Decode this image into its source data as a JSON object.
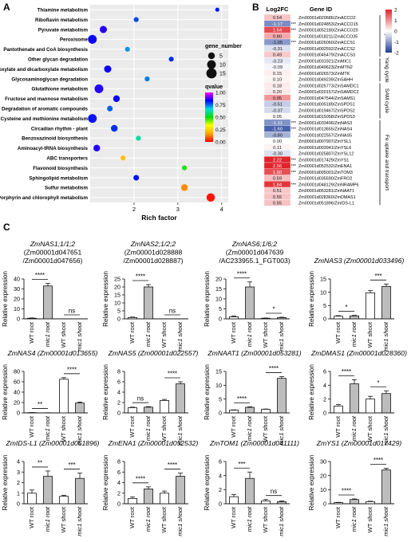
{
  "panel_labels": {
    "a": "A",
    "b": "B",
    "c": "C"
  },
  "chart_data": [
    {
      "panel": "A",
      "type": "scatter",
      "xlabel": "Rich factor",
      "xticks": [
        2,
        3,
        4
      ],
      "xlim": [
        1.0,
        4.15
      ],
      "grid": true,
      "size_legend_title": "gene_number",
      "size_legend": [
        5,
        10,
        15
      ],
      "color_legend_title": "qvalue",
      "color_ticks": [
        "1.00",
        "0.75",
        "0.50",
        "0.25",
        "0.00"
      ],
      "categories": [
        "Thiamine metabolism",
        "Riboflavin metabolism",
        "Pyruvate metabolism",
        "Peroxisome",
        "Pantothenate and CoA biosynthesis",
        "Other glycan degradation",
        "Glyoxylate and dicarboxylate metabolism",
        "Glycosaminoglycan degradation",
        "Glutathione metabolism",
        "Fructose and mannose metabolism",
        "Degradation of aromatic compounds",
        "Cysteine and methionine metabolism",
        "Circadian rhythm - plant",
        "Benzoxazinoid biosynthesis",
        "Aminoacyl-tRNA biosynthesis",
        "ABC transporters",
        "Flavonoid biosynthesis",
        "Sphingolipid metabolism",
        "Sulfur metabolism",
        "Porphyrin and chlorophyll metabolism"
      ],
      "points": [
        {
          "x": 3.9,
          "size": 1,
          "q": 0.82
        },
        {
          "x": 2.05,
          "size": 2,
          "q": 0.78
        },
        {
          "x": 1.3,
          "size": 6,
          "q": 0.86
        },
        {
          "x": 1.05,
          "size": 10,
          "q": 0.84
        },
        {
          "x": 1.85,
          "size": 2,
          "q": 0.72
        },
        {
          "x": 2.85,
          "size": 2,
          "q": 0.8
        },
        {
          "x": 1.4,
          "size": 6,
          "q": 0.84
        },
        {
          "x": 2.3,
          "size": 2,
          "q": 0.74
        },
        {
          "x": 1.2,
          "size": 10,
          "q": 0.86
        },
        {
          "x": 1.6,
          "size": 5,
          "q": 0.84
        },
        {
          "x": 1.45,
          "size": 3,
          "q": 0.76
        },
        {
          "x": 1.05,
          "size": 10,
          "q": 0.82
        },
        {
          "x": 1.55,
          "size": 5,
          "q": 0.8
        },
        {
          "x": 2.1,
          "size": 2,
          "q": 0.62
        },
        {
          "x": 1.15,
          "size": 5,
          "q": 0.86
        },
        {
          "x": 1.75,
          "size": 2,
          "q": 0.22
        },
        {
          "x": 3.15,
          "size": 2,
          "q": 0.48
        },
        {
          "x": 2.05,
          "size": 3,
          "q": 0.82
        },
        {
          "x": 3.15,
          "size": 5,
          "q": 0.14
        },
        {
          "x": 3.75,
          "size": 9,
          "q": 0.02
        }
      ]
    },
    {
      "panel": "B",
      "type": "heatmap",
      "col_headers": [
        "Log2FC",
        "Gene ID"
      ],
      "colorbar_ticks": [
        "2",
        "1",
        "0",
        "-1",
        "-2"
      ],
      "vmin": -2,
      "vmax": 2,
      "rows": [
        {
          "fc": "0.54",
          "v": 0.54,
          "stars": "",
          "gene": "Zm00001d020686/ZmACCO2"
        },
        {
          "fc": "-1.17",
          "v": -1.17,
          "stars": "***",
          "gene": "Zm00001d024853/ZmACCO15"
        },
        {
          "fc": "1.64",
          "v": 1.64,
          "stars": "***",
          "gene": "Zm00001d052180/ZmACCO20"
        },
        {
          "fc": "0.80",
          "v": 0.8,
          "stars": "",
          "gene": "Zm00001d018211/ZmACCO35"
        },
        {
          "fc": "-1.05",
          "v": -1.05,
          "stars": "***",
          "gene": "Zm00001d026060/ZmACCS1"
        },
        {
          "fc": "-0.31",
          "v": -0.31,
          "stars": "",
          "gene": "Zm00001d002592/ZmACCS2"
        },
        {
          "fc": "0.49",
          "v": 0.49,
          "stars": "",
          "gene": "Zm00001d045479/ZmACCS3"
        },
        {
          "fc": "-0.23",
          "v": -0.23,
          "stars": "",
          "gene": "Zm00001d031921/ZmMIC1"
        },
        {
          "fc": "-0.09",
          "v": -0.09,
          "stars": "",
          "gene": "Zm00001d049623/ZmMTN2"
        },
        {
          "fc": "0.15",
          "v": 0.15,
          "stars": "",
          "gene": "Zm00001d026573/ZmMTK"
        },
        {
          "fc": "0.10",
          "v": 0.1,
          "stars": "",
          "gene": "Zm00001d049239/ZmSAHH"
        },
        {
          "fc": "0.18",
          "v": 0.18,
          "stars": "",
          "gene": "Zm00001d025773/ZmSAMDC1"
        },
        {
          "fc": "0.20",
          "v": 0.2,
          "stars": "",
          "gene": "Zm00001d020157/ZmSAMDC2"
        },
        {
          "fc": "0.95",
          "v": 0.95,
          "stars": "",
          "gene": "Zm00001d047544/ZmSAMS1"
        },
        {
          "fc": "-0.51",
          "v": -0.51,
          "stars": "",
          "gene": "Zm00001d005189/ZmSPDS1"
        },
        {
          "fc": "-0.37",
          "v": -0.37,
          "stars": "",
          "gene": "Zm00001d019467/ZmSPDS2"
        },
        {
          "fc": "0.05",
          "v": 0.05,
          "stars": "",
          "gene": "Zm00001d015058/ZmSPDS3"
        },
        {
          "fc": "-1.11",
          "v": -1.11,
          "stars": "***",
          "gene": "Zm00001d033496/ZmNAS3"
        },
        {
          "fc": "-1.60",
          "v": -1.6,
          "stars": "***",
          "gene": "Zm00001d013655/ZmNAS4"
        },
        {
          "fc": "-0.80",
          "v": -0.8,
          "stars": "",
          "gene": "Zm00001d022557/ZmNAS5"
        },
        {
          "fc": "0.00",
          "v": 0.0,
          "stars": "",
          "gene": "Zm00001d007907/ZmYSL1"
        },
        {
          "fc": "0.11",
          "v": 0.11,
          "stars": "",
          "gene": "Zm00001d003941/ZmYSL6"
        },
        {
          "fc": "-0.30",
          "v": -0.3,
          "stars": "",
          "gene": "Zm00001d025807/ZmYSL12"
        },
        {
          "fc": "2.22",
          "v": 2.22,
          "stars": "***",
          "gene": "Zm00001d017429/ZmYS1"
        },
        {
          "fc": "2.56",
          "v": 2.56,
          "stars": "***",
          "gene": "Zm00001d052532/ZmENA1"
        },
        {
          "fc": "1.60",
          "v": 1.6,
          "stars": "***",
          "gene": "Zm00001d005001/ZmTOM3"
        },
        {
          "fc": "0.59",
          "v": 0.59,
          "stars": "",
          "gene": "Zm00001d035590/ZmFRO2"
        },
        {
          "fc": "1.84",
          "v": 1.84,
          "stars": "***",
          "gene": "Zm00001d048129/ZmNRAMP6"
        },
        {
          "fc": "0.51",
          "v": 0.51,
          "stars": "",
          "gene": "Zm00001d053281/ZmNAAT1"
        },
        {
          "fc": "0.55",
          "v": 0.55,
          "stars": "",
          "gene": "Zm00001d028360/ZmDMAS1"
        },
        {
          "fc": "0.55",
          "v": 0.55,
          "stars": "",
          "gene": "Zm00001d051896/ZmIDS-L1"
        }
      ],
      "groups": [
        {
          "label": "Ethylene",
          "start": 0,
          "end": 6
        },
        {
          "label": "Yang cycle",
          "start": 7,
          "end": 10
        },
        {
          "label": "SAM cycle",
          "start": 11,
          "end": 16
        },
        {
          "label": "Fe uptake and transport",
          "start": 17,
          "end": 30
        }
      ]
    },
    {
      "panel": "C",
      "type": "bar",
      "ylabel": "Relative expression",
      "categories": [
        "WT root",
        "mic1 root",
        "WT shoot",
        "mic1 shoot"
      ],
      "charts": [
        {
          "title_lines": [
            "ZmNAS1;1/1;2",
            "(Zm00001d047651",
            "/Zm00001d047656)"
          ],
          "ymax": 40,
          "ticks": [
            0,
            10,
            20,
            30,
            40
          ],
          "values": [
            0.6,
            33,
            0,
            0
          ],
          "errs": [
            0.3,
            2.5,
            0,
            0
          ],
          "sig": [
            {
              "a": 0,
              "b": 1,
              "l": "****"
            },
            {
              "a": 2,
              "b": 3,
              "l": "ns"
            }
          ]
        },
        {
          "title_lines": [
            "ZmNAS2;1/2;2",
            "(Zm00001d028888",
            "/Zm00001d028887)"
          ],
          "ymax": 25,
          "ticks": [
            0,
            5,
            10,
            15,
            20,
            25
          ],
          "values": [
            0.8,
            20,
            0,
            0
          ],
          "errs": [
            0.3,
            1.5,
            0,
            0
          ],
          "sig": [
            {
              "a": 0,
              "b": 1,
              "l": "****"
            },
            {
              "a": 2,
              "b": 3,
              "l": "ns"
            }
          ]
        },
        {
          "title_lines": [
            "ZmNAS6;1/6;2",
            "(Zm00001d047639",
            "/AC233955.1_FGT003)"
          ],
          "ymax": 20,
          "ticks": [
            0,
            5,
            10,
            15,
            20
          ],
          "values": [
            1,
            16,
            0.3,
            0.6
          ],
          "errs": [
            0.4,
            2.5,
            0.1,
            0.2
          ],
          "sig": [
            {
              "a": 0,
              "b": 1,
              "l": "****"
            },
            {
              "a": 2,
              "b": 3,
              "l": "*"
            }
          ]
        },
        {
          "title_lines": [
            "ZmNAS3 (Zm00001d033496)"
          ],
          "ymax": 15,
          "ticks": [
            0,
            5,
            10,
            15
          ],
          "values": [
            1,
            1.1,
            9.8,
            12.2
          ],
          "errs": [
            0.2,
            0.2,
            0.8,
            0.9
          ],
          "sig": [
            {
              "a": 0,
              "b": 1,
              "l": "*"
            },
            {
              "a": 2,
              "b": 3,
              "l": "***"
            }
          ]
        },
        {
          "title_lines": [
            "ZmNAS4 (Zm00001d013655)"
          ],
          "ymax": 80,
          "ticks": [
            0,
            20,
            40,
            60,
            80
          ],
          "values": [
            0.5,
            0.2,
            65,
            19
          ],
          "errs": [
            0.2,
            0.1,
            3,
            2
          ],
          "sig": [
            {
              "a": 0,
              "b": 1,
              "l": "**"
            },
            {
              "a": 2,
              "b": 3,
              "l": "****"
            }
          ]
        },
        {
          "title_lines": [
            "ZmNAS5 (Zm00001d022557)"
          ],
          "ymax": 8,
          "ticks": [
            0,
            2,
            4,
            6,
            8
          ],
          "values": [
            1,
            1.1,
            2.4,
            5.6
          ],
          "errs": [
            0.1,
            0.1,
            0.2,
            0.4
          ],
          "sig": [
            {
              "a": 0,
              "b": 1,
              "l": "ns"
            },
            {
              "a": 2,
              "b": 3,
              "l": "****"
            }
          ]
        },
        {
          "title_lines": [
            "ZmNAAT1 (Zm00001d053281)"
          ],
          "ymax": 15,
          "ticks": [
            0,
            5,
            10,
            15
          ],
          "values": [
            1,
            2,
            1.3,
            12.5
          ],
          "errs": [
            0.1,
            0.2,
            0.1,
            0.6
          ],
          "sig": [
            {
              "a": 0,
              "b": 1,
              "l": "****"
            },
            {
              "a": 2,
              "b": 3,
              "l": "****"
            }
          ]
        },
        {
          "title_lines": [
            "ZmDMAS1 (Zm00001d028360)"
          ],
          "ymax": 6,
          "ticks": [
            0,
            2,
            4,
            6
          ],
          "values": [
            1,
            4.2,
            2,
            2.8
          ],
          "errs": [
            0.2,
            0.6,
            0.4,
            0.4
          ],
          "sig": [
            {
              "a": 0,
              "b": 1,
              "l": "****"
            },
            {
              "a": 2,
              "b": 3,
              "l": "*"
            }
          ]
        },
        {
          "title_lines": [
            "ZmIDS-L1 (Zm00001d051896)"
          ],
          "ymax": 4,
          "ticks": [
            0,
            1,
            2,
            3,
            4
          ],
          "values": [
            1,
            2.6,
            0.7,
            2.4
          ],
          "errs": [
            0.3,
            0.5,
            0.1,
            0.5
          ],
          "sig": [
            {
              "a": 0,
              "b": 1,
              "l": "**"
            },
            {
              "a": 2,
              "b": 3,
              "l": "***"
            }
          ]
        },
        {
          "title_lines": [
            "ZmENA1 (Zm00001d052532)"
          ],
          "ymax": 8,
          "ticks": [
            0,
            2,
            4,
            6,
            8
          ],
          "values": [
            1,
            2.8,
            2,
            5.2
          ],
          "errs": [
            0.3,
            0.4,
            0.4,
            0.6
          ],
          "sig": [
            {
              "a": 0,
              "b": 1,
              "l": "****"
            },
            {
              "a": 2,
              "b": 3,
              "l": "****"
            }
          ]
        },
        {
          "title_lines": [
            "ZmTOM1 (Zm00001d041111)"
          ],
          "ymax": 6,
          "ticks": [
            0,
            2,
            4,
            6
          ],
          "values": [
            1,
            3.6,
            0.4,
            0.3
          ],
          "errs": [
            0.3,
            0.9,
            0.2,
            0.1
          ],
          "sig": [
            {
              "a": 0,
              "b": 1,
              "l": "***"
            },
            {
              "a": 2,
              "b": 3,
              "l": "ns"
            }
          ]
        },
        {
          "title_lines": [
            "ZmYS1 (Zm00001d017429)"
          ],
          "ymax": 30,
          "ticks": [
            0,
            10,
            20,
            30
          ],
          "values": [
            0.8,
            3,
            1.5,
            24
          ],
          "errs": [
            0.2,
            0.4,
            0.3,
            1.2
          ],
          "sig": [
            {
              "a": 0,
              "b": 1,
              "l": "****"
            },
            {
              "a": 2,
              "b": 3,
              "l": "****"
            }
          ]
        }
      ]
    }
  ]
}
